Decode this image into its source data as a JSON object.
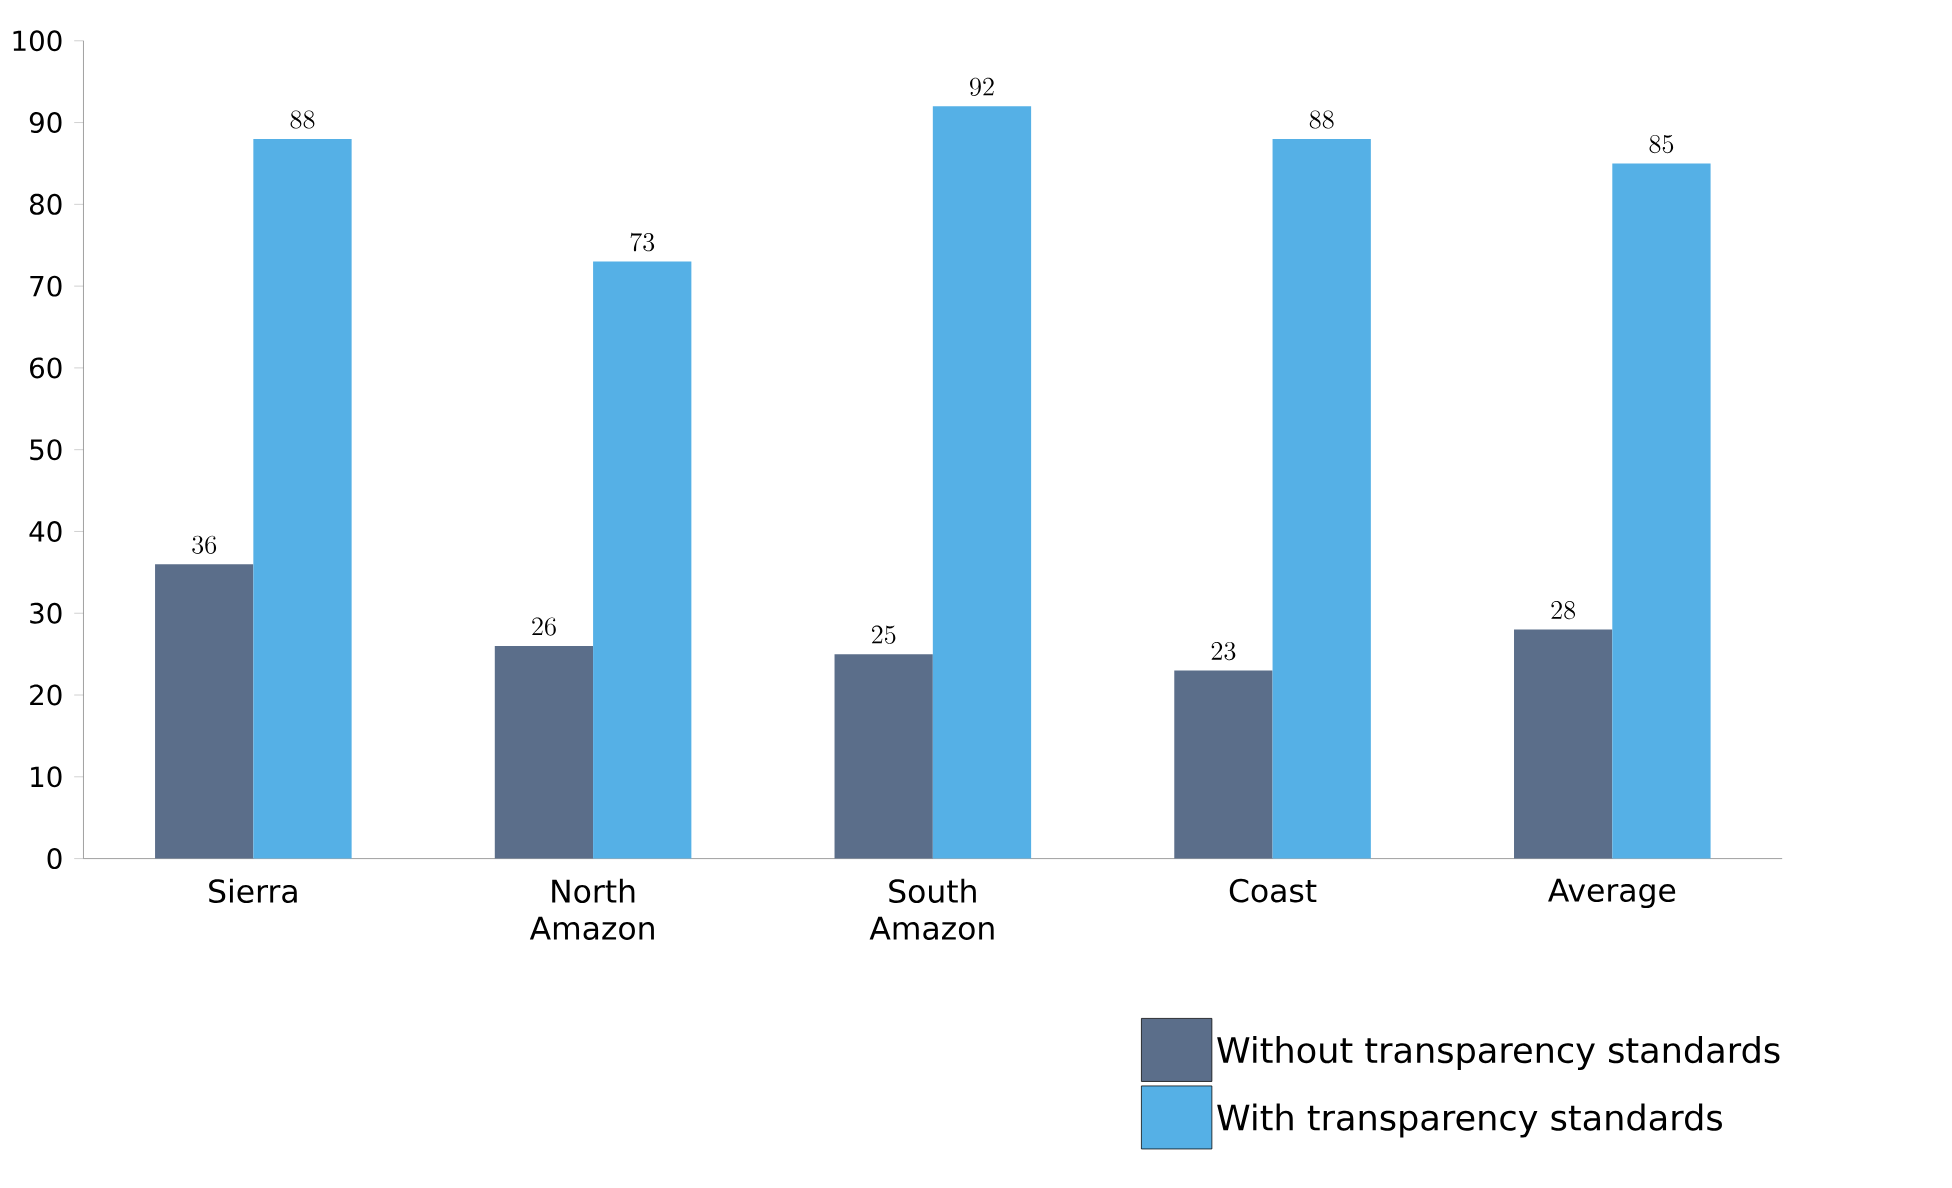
{
  "chart_data": {
    "type": "bar",
    "categories": [
      "Sierra",
      "North Amazon",
      "South Amazon",
      "Coast",
      "Average"
    ],
    "series": [
      {
        "name": "Without transparency standards",
        "color": "#5b6e8a",
        "values": [
          36,
          26,
          25,
          23,
          28
        ]
      },
      {
        "name": "With transparency standards",
        "color": "#55b0e6",
        "values": [
          88,
          73,
          92,
          88,
          85
        ]
      }
    ],
    "ylim": [
      0,
      100
    ],
    "yticks": [
      0,
      10,
      20,
      30,
      40,
      50,
      60,
      70,
      80,
      90,
      100
    ],
    "data_labels": true,
    "legend": "bottom right",
    "grid": false
  }
}
